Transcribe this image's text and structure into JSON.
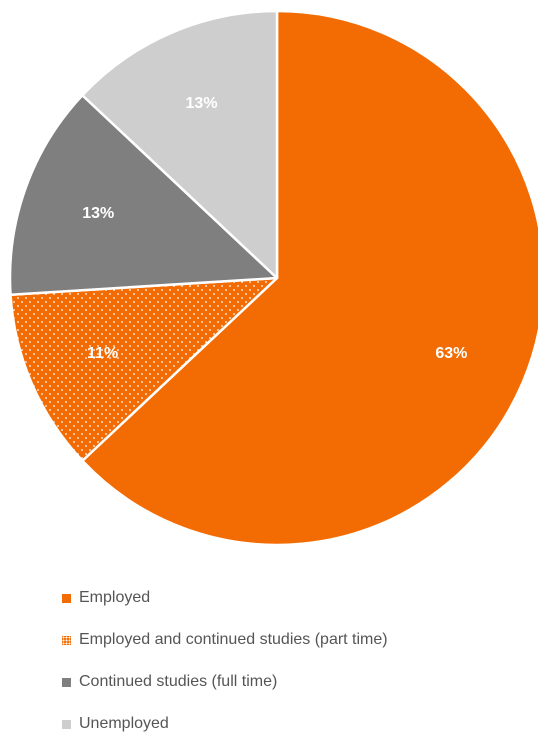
{
  "chart_data": {
    "type": "pie",
    "title": "",
    "start_angle_deg": 0,
    "direction": "clockwise",
    "legend_position": "bottom",
    "slices": [
      {
        "label": "Employed",
        "value": 63,
        "display": "63%",
        "color": "#F36C03",
        "pattern": "solid"
      },
      {
        "label": "Employed and continued studies (part time)",
        "value": 11,
        "display": "11%",
        "color": "#F36C03",
        "pattern": "dotted"
      },
      {
        "label": "Continued studies (full time)",
        "value": 13,
        "display": "13%",
        "color": "#7F7F7F",
        "pattern": "solid"
      },
      {
        "label": "Unemployed",
        "value": 13,
        "display": "13%",
        "color": "#CECECE",
        "pattern": "solid"
      }
    ]
  }
}
